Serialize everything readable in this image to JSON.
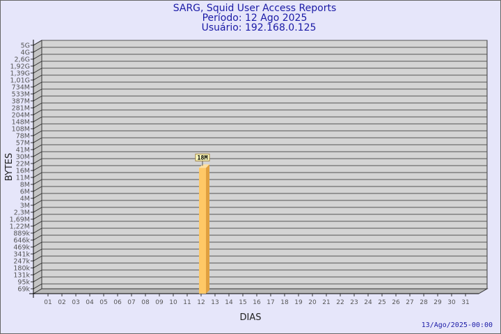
{
  "title": [
    "SARG, Squid User Access Reports",
    "Período: 12 Ago 2025",
    "Usuário: 192.168.0.125"
  ],
  "footer": "13/Ago/2025-00:00",
  "colors": {
    "background": "#e6e6fa",
    "plot": "#d4d4d4",
    "bar_front": "#ffc866",
    "bar_side": "#e0a040",
    "title": "#1a1aa6"
  },
  "chart_data": {
    "type": "bar",
    "xlabel": "DIAS",
    "ylabel": "BYTES",
    "y_scale": "log",
    "grid": true,
    "y_ticks": [
      "5G",
      "4G",
      "2,6G",
      "1,92G",
      "1,39G",
      "1,01G",
      "734M",
      "533M",
      "387M",
      "281M",
      "204M",
      "148M",
      "108M",
      "78M",
      "57M",
      "41M",
      "30M",
      "22M",
      "16M",
      "11M",
      "8M",
      "6M",
      "4M",
      "3M",
      "2,3M",
      "1,69M",
      "1,22M",
      "889k",
      "646k",
      "469k",
      "341k",
      "247k",
      "180k",
      "131k",
      "95k",
      "69k"
    ],
    "categories": [
      "01",
      "02",
      "03",
      "04",
      "05",
      "06",
      "07",
      "08",
      "09",
      "10",
      "11",
      "12",
      "13",
      "14",
      "15",
      "16",
      "17",
      "18",
      "19",
      "20",
      "21",
      "22",
      "23",
      "24",
      "25",
      "26",
      "27",
      "28",
      "29",
      "30",
      "31"
    ],
    "bars": [
      {
        "category": "12",
        "value": "18M",
        "label": "18M"
      }
    ]
  }
}
